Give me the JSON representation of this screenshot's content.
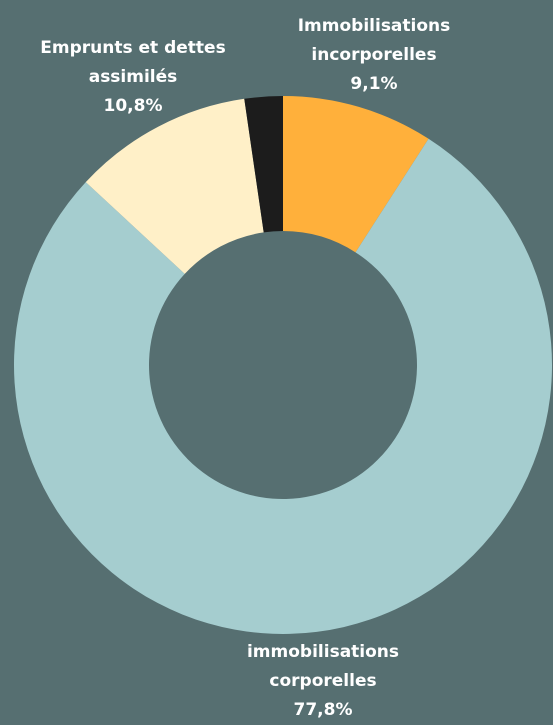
{
  "chart_data": {
    "type": "donut",
    "categories": [
      "Immobilisations incorporelles",
      "immobilisations corporelles",
      "Emprunts et dettes assimilés",
      null
    ],
    "values": [
      9.1,
      77.8,
      10.8,
      2.3
    ],
    "value_labels": [
      "9,1%",
      "77,8%",
      "10,8%",
      null
    ],
    "colors": [
      "#ffb03b",
      "#a5cdcf",
      "#fff0c8",
      "#1c1c1c"
    ]
  }
}
